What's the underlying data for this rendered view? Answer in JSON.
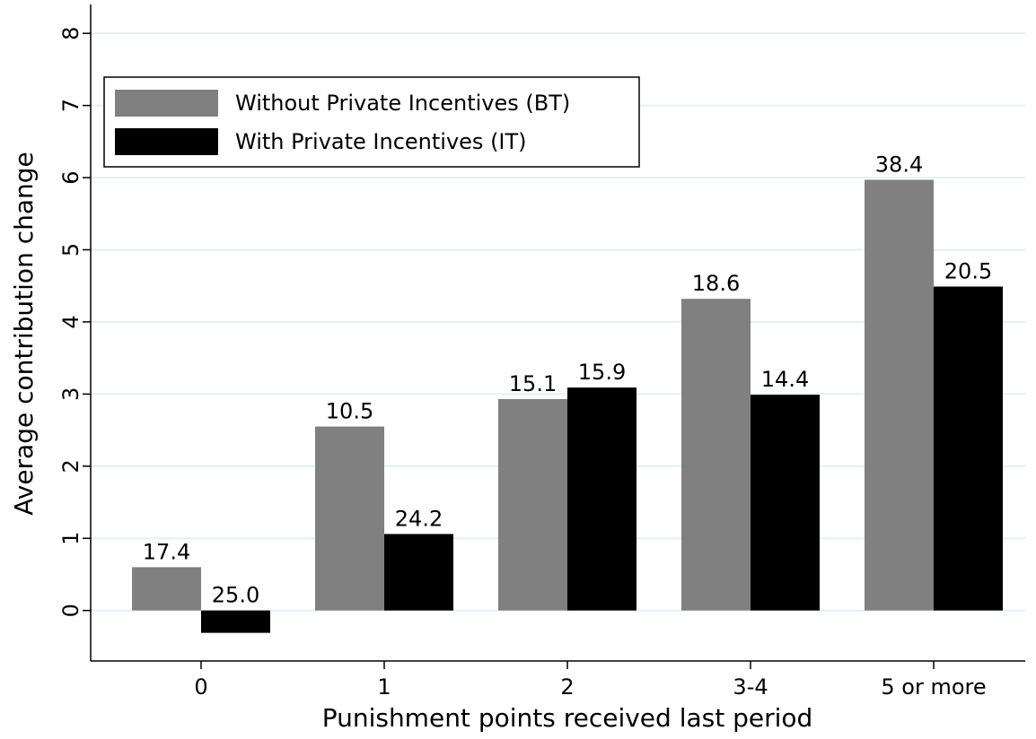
{
  "chart_data": {
    "type": "bar",
    "x_label": "Punishment points received last period",
    "y_label": "Average contribution change",
    "categories": [
      "0",
      "1",
      "2",
      "3-4",
      "5 or more"
    ],
    "series": [
      {
        "name": "Without Private Incentives (BT)",
        "color": "#808080",
        "values": [
          0.6,
          2.55,
          2.93,
          4.32,
          5.97
        ],
        "annotations": [
          "17.4",
          "10.5",
          "15.1",
          "18.6",
          "38.4"
        ]
      },
      {
        "name": "With Private Incentives (IT)",
        "color": "#000000",
        "values": [
          -0.31,
          1.06,
          3.09,
          2.99,
          4.49
        ],
        "annotations": [
          "25.0",
          "24.2",
          "15.9",
          "14.4",
          "20.5"
        ]
      }
    ],
    "ylim": [
      -0.7,
      8.4
    ],
    "yticks": [
      0,
      1,
      2,
      3,
      4,
      5,
      6,
      7,
      8
    ],
    "grid": true,
    "legend": "upper left"
  }
}
